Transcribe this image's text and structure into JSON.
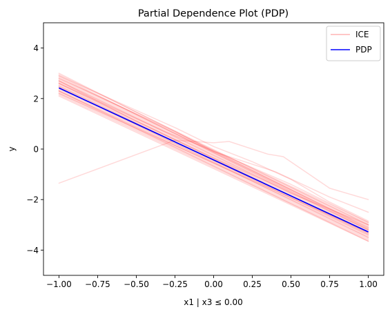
{
  "chart_data": {
    "type": "line",
    "title": "Partial Dependence Plot (PDP)",
    "xlabel": "x1 | x3 ≤ 0.00",
    "ylabel": "y",
    "xlim": [
      -1.1,
      1.1
    ],
    "ylim": [
      -5,
      5
    ],
    "xticks": [
      -1.0,
      -0.75,
      -0.5,
      -0.25,
      0.0,
      0.25,
      0.5,
      0.75,
      1.0
    ],
    "xtick_labels": [
      "−1.00",
      "−0.75",
      "−0.50",
      "−0.25",
      "0.00",
      "0.25",
      "0.50",
      "0.75",
      "1.00"
    ],
    "yticks": [
      -4,
      -2,
      0,
      2,
      4
    ],
    "ytick_labels": [
      "−4",
      "−2",
      "0",
      "2",
      "4"
    ],
    "grid": false,
    "legend": {
      "placement": "top-right",
      "entries": [
        {
          "label": "ICE",
          "color": "#ffb3b3"
        },
        {
          "label": "PDP",
          "color": "#0000ff"
        }
      ]
    },
    "ice_color": "#ff0000",
    "ice_opacity": 0.15,
    "pdp_color": "#0000ff",
    "series": [
      {
        "name": "PDP",
        "x": [
          -1.0,
          1.0
        ],
        "y": [
          2.42,
          -3.28
        ]
      },
      {
        "name": "ICE",
        "curves": [
          {
            "x": [
              -1,
              1
            ],
            "y": [
              2.1,
              -3.65
            ]
          },
          {
            "x": [
              -1,
              1
            ],
            "y": [
              2.15,
              -3.6
            ]
          },
          {
            "x": [
              -1,
              1
            ],
            "y": [
              2.2,
              -3.55
            ]
          },
          {
            "x": [
              -1,
              1
            ],
            "y": [
              2.25,
              -3.5
            ]
          },
          {
            "x": [
              -1,
              1
            ],
            "y": [
              2.3,
              -3.45
            ]
          },
          {
            "x": [
              -1,
              1
            ],
            "y": [
              2.3,
              -3.4
            ]
          },
          {
            "x": [
              -1,
              1
            ],
            "y": [
              2.35,
              -3.35
            ]
          },
          {
            "x": [
              -1,
              1
            ],
            "y": [
              2.4,
              -3.3
            ]
          },
          {
            "x": [
              -1,
              1
            ],
            "y": [
              2.45,
              -3.25
            ]
          },
          {
            "x": [
              -1,
              1
            ],
            "y": [
              2.5,
              -3.2
            ]
          },
          {
            "x": [
              -1,
              1
            ],
            "y": [
              2.55,
              -3.15
            ]
          },
          {
            "x": [
              -1,
              1
            ],
            "y": [
              2.6,
              -3.1
            ]
          },
          {
            "x": [
              -1,
              1
            ],
            "y": [
              2.65,
              -3.05
            ]
          },
          {
            "x": [
              -1,
              1
            ],
            "y": [
              2.7,
              -3.0
            ]
          },
          {
            "x": [
              -1,
              1
            ],
            "y": [
              2.75,
              -2.95
            ]
          },
          {
            "x": [
              -1,
              1
            ],
            "y": [
              2.8,
              -2.9
            ]
          },
          {
            "x": [
              -1,
              1
            ],
            "y": [
              2.85,
              -3.1
            ]
          },
          {
            "x": [
              -1,
              1
            ],
            "y": [
              2.9,
              -3.2
            ]
          },
          {
            "x": [
              -1,
              1
            ],
            "y": [
              2.95,
              -3.0
            ]
          },
          {
            "x": [
              -1,
              1
            ],
            "y": [
              3.0,
              -3.15
            ]
          },
          {
            "x": [
              -1,
              1
            ],
            "y": [
              2.3,
              -3.65
            ]
          },
          {
            "x": [
              -1,
              1
            ],
            "y": [
              2.45,
              -3.5
            ]
          },
          {
            "x": [
              -1,
              1
            ],
            "y": [
              2.6,
              -3.35
            ]
          },
          {
            "x": [
              -1,
              1
            ],
            "y": [
              2.7,
              -3.2
            ]
          },
          {
            "x": [
              -1,
              1
            ],
            "y": [
              2.2,
              -3.3
            ]
          },
          {
            "x": [
              -1,
              1
            ],
            "y": [
              2.5,
              -3.4
            ]
          },
          {
            "x": [
              -1,
              -0.5,
              0,
              0.35,
              0.5,
              1
            ],
            "y": [
              2.7,
              1.1,
              -0.35,
              -1.3,
              -1.75,
              -3.0
            ]
          },
          {
            "x": [
              -1,
              -0.25,
              0,
              0.4,
              0.75,
              1
            ],
            "y": [
              2.8,
              0.7,
              -0.1,
              -0.9,
              -1.9,
              -2.5
            ]
          },
          {
            "x": [
              -1,
              -0.25,
              0,
              0.25,
              0.5,
              0.75,
              1
            ],
            "y": [
              2.9,
              0.85,
              0.1,
              -0.5,
              -1.2,
              -2.1,
              -2.85
            ]
          },
          {
            "x": [
              -1,
              -0.3,
              -0.05,
              0.2,
              0.5,
              1
            ],
            "y": [
              2.6,
              0.65,
              0.05,
              -0.6,
              -1.4,
              -2.9
            ]
          },
          {
            "x": [
              -1,
              -0.25,
              0,
              0.1,
              0.35,
              0.45,
              0.75,
              1
            ],
            "y": [
              -1.35,
              0.35,
              0.25,
              0.3,
              -0.2,
              -0.3,
              -1.55,
              -2.0
            ]
          }
        ]
      }
    ]
  }
}
